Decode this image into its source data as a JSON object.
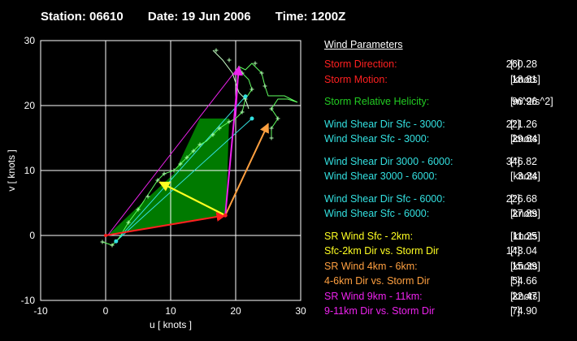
{
  "header": {
    "station": "Station: 06610",
    "date": "Date: 19 Jun 2006",
    "time": "Time: 1200Z"
  },
  "params": {
    "title": "Wind Parameters",
    "groups": [
      [
        {
          "label": "Storm Direction:",
          "value": "260.28",
          "unit": "[°]",
          "color": "#ff2020"
        },
        {
          "label": "Storm Motion:",
          "value": "18.61",
          "unit": "[knots]",
          "color": "#ff2020"
        }
      ],
      [
        {
          "label": "Storm Relative Helicity:",
          "value": "96.96",
          "unit": "[m^2/s^2]",
          "color": "#22cc22"
        }
      ],
      [
        {
          "label": "Wind Shear Dir Sfc - 3000:",
          "value": "221.26",
          "unit": "[°]",
          "color": "#33e0e0"
        },
        {
          "label": "Wind Shear Sfc - 3000:",
          "value": "29.64",
          "unit": "[knots]",
          "color": "#33e0e0"
        }
      ],
      [
        {
          "label": "Wind Shear Dir 3000 - 6000:",
          "value": "346.82",
          "unit": "[°]",
          "color": "#33e0e0"
        },
        {
          "label": "Wind Shear 3000 - 6000:",
          "value": "3.24",
          "unit": "[knots]",
          "color": "#33e0e0"
        }
      ],
      [
        {
          "label": "Wind Shear Dir Sfc - 6000:",
          "value": "226.68",
          "unit": "[°]",
          "color": "#33e0e0"
        },
        {
          "label": "Wind Shear Sfc - 6000:",
          "value": "27.89",
          "unit": "[knots]",
          "color": "#33e0e0"
        }
      ],
      [
        {
          "label": "SR Wind Sfc - 2km:",
          "value": "11.25",
          "unit": "[knots]",
          "color": "#ffff22"
        },
        {
          "label": "Sfc-2km Dir vs. Storm Dir",
          "value": "143.04",
          "unit": "[°]",
          "color": "#ffff22"
        },
        {
          "label": "SR Wind 4km - 6km:",
          "value": "15.39",
          "unit": "[knots]",
          "color": "#ffa040"
        },
        {
          "label": "4-6km Dir vs. Storm Dir",
          "value": "54.66",
          "unit": "[°]",
          "color": "#ffa040"
        },
        {
          "label": "SR Wind 9km - 11km:",
          "value": "22.47",
          "unit": "[knots]",
          "color": "#ee22ee"
        },
        {
          "label": "9-11km Dir vs. Storm Dir",
          "value": "74.90",
          "unit": "[°]",
          "color": "#ee22ee"
        }
      ]
    ]
  },
  "chart_data": {
    "type": "hodograph",
    "xlabel": "u  [ knots ]",
    "ylabel": "v  [ knots ]",
    "xlim": [
      -10,
      30
    ],
    "ylim": [
      -10,
      30
    ],
    "xticks": [
      -10,
      0,
      10,
      20,
      30
    ],
    "yticks": [
      -10,
      0,
      10,
      20,
      30
    ],
    "grid": true,
    "colors": {
      "grid": "#ffffff",
      "hodograph": "#60ff60",
      "helicity_fill": "#007a00",
      "storm": "#ff2020",
      "sfc_2km": "#ffff22",
      "km4_6": "#ffa040",
      "km9_11": "#ee22ee",
      "shear": "#33e0e0"
    },
    "hodograph": [
      [
        -0.5,
        -1
      ],
      [
        1,
        -1.5
      ],
      [
        2,
        -0.5
      ],
      [
        3.5,
        2
      ],
      [
        5,
        4
      ],
      [
        6,
        5.5
      ],
      [
        7,
        7
      ],
      [
        8,
        8.5
      ],
      [
        9,
        9.5
      ],
      [
        10.5,
        10
      ],
      [
        11.5,
        11
      ],
      [
        12.5,
        12
      ],
      [
        13.5,
        13
      ],
      [
        14.5,
        14
      ],
      [
        15.5,
        14.5
      ],
      [
        16.5,
        15.5
      ],
      [
        17.5,
        16.5
      ],
      [
        19,
        17.5
      ],
      [
        20,
        18
      ],
      [
        21,
        19
      ],
      [
        21.5,
        21
      ],
      [
        22.5,
        22.5
      ],
      [
        22,
        24
      ],
      [
        21,
        25
      ],
      [
        20.5,
        26
      ],
      [
        21.5,
        25.5
      ],
      [
        22.5,
        26.5
      ],
      [
        24,
        25
      ],
      [
        24.5,
        23
      ],
      [
        25,
        21.5
      ],
      [
        27.5,
        21.5
      ],
      [
        29.5,
        20.5
      ],
      [
        28,
        21
      ],
      [
        26.5,
        21
      ],
      [
        25.5,
        19.5
      ],
      [
        26.5,
        18
      ],
      [
        25.5,
        16.5
      ],
      [
        25.5,
        15
      ]
    ],
    "hodograph_markers": [
      [
        -0.5,
        -1
      ],
      [
        1,
        -1.5
      ],
      [
        3.5,
        2
      ],
      [
        5,
        4
      ],
      [
        6.5,
        6
      ],
      [
        8,
        8.5
      ],
      [
        9,
        9.5
      ],
      [
        10.5,
        10
      ],
      [
        11.5,
        11
      ],
      [
        12.5,
        12
      ],
      [
        13.5,
        13
      ],
      [
        14.5,
        14
      ],
      [
        16.5,
        15.5
      ],
      [
        17.5,
        16.5
      ],
      [
        19,
        17.5
      ],
      [
        21,
        19
      ],
      [
        21.5,
        21
      ],
      [
        22.5,
        22.5
      ],
      [
        21,
        25
      ],
      [
        23,
        26.5
      ],
      [
        24,
        25
      ],
      [
        24.5,
        23
      ],
      [
        25.5,
        19.5
      ],
      [
        26.5,
        18
      ],
      [
        25.5,
        16.5
      ],
      [
        25.5,
        15
      ],
      [
        17,
        28.5
      ],
      [
        19,
        27
      ]
    ],
    "light_hodograph": [
      [
        16.5,
        28.5
      ],
      [
        18,
        27
      ],
      [
        19.5,
        25
      ],
      [
        20.5,
        22
      ],
      [
        21.5,
        21
      ],
      [
        22,
        19.5
      ]
    ],
    "helicity_region": [
      [
        0.3,
        0
      ],
      [
        4,
        3.5
      ],
      [
        10.5,
        9.5
      ],
      [
        14.5,
        18
      ],
      [
        19,
        18
      ],
      [
        18.5,
        3
      ]
    ],
    "storm_motion": [
      18.4,
      3.1
    ],
    "origin": [
      0,
      0
    ],
    "vectors": {
      "storm": {
        "from": [
          0,
          0
        ],
        "to": [
          18.4,
          3.1
        ]
      },
      "sfc_2km": {
        "from": [
          18.4,
          3.1
        ],
        "to": [
          8.3,
          8.2
        ]
      },
      "km4_6": {
        "from": [
          18.4,
          3.1
        ],
        "to": [
          25,
          17.2
        ]
      },
      "km9_11": {
        "from": [
          18.4,
          3.1
        ],
        "to": [
          20.5,
          26
        ]
      },
      "shear_sfc_3km": {
        "from": [
          1.6,
          -0.9
        ],
        "to": [
          21.5,
          21.4
        ]
      },
      "shear_sfc_6km": {
        "from": [
          1.6,
          -0.9
        ],
        "to": [
          22.5,
          18
        ]
      }
    },
    "sample_points": [
      [
        1.6,
        -0.9
      ],
      [
        21.5,
        21.4
      ],
      [
        22.5,
        18
      ]
    ],
    "magenta_envelope": [
      [
        0.3,
        0
      ],
      [
        10,
        12.5
      ],
      [
        20.5,
        26
      ],
      [
        20,
        18
      ],
      [
        20.5,
        26
      ]
    ]
  }
}
